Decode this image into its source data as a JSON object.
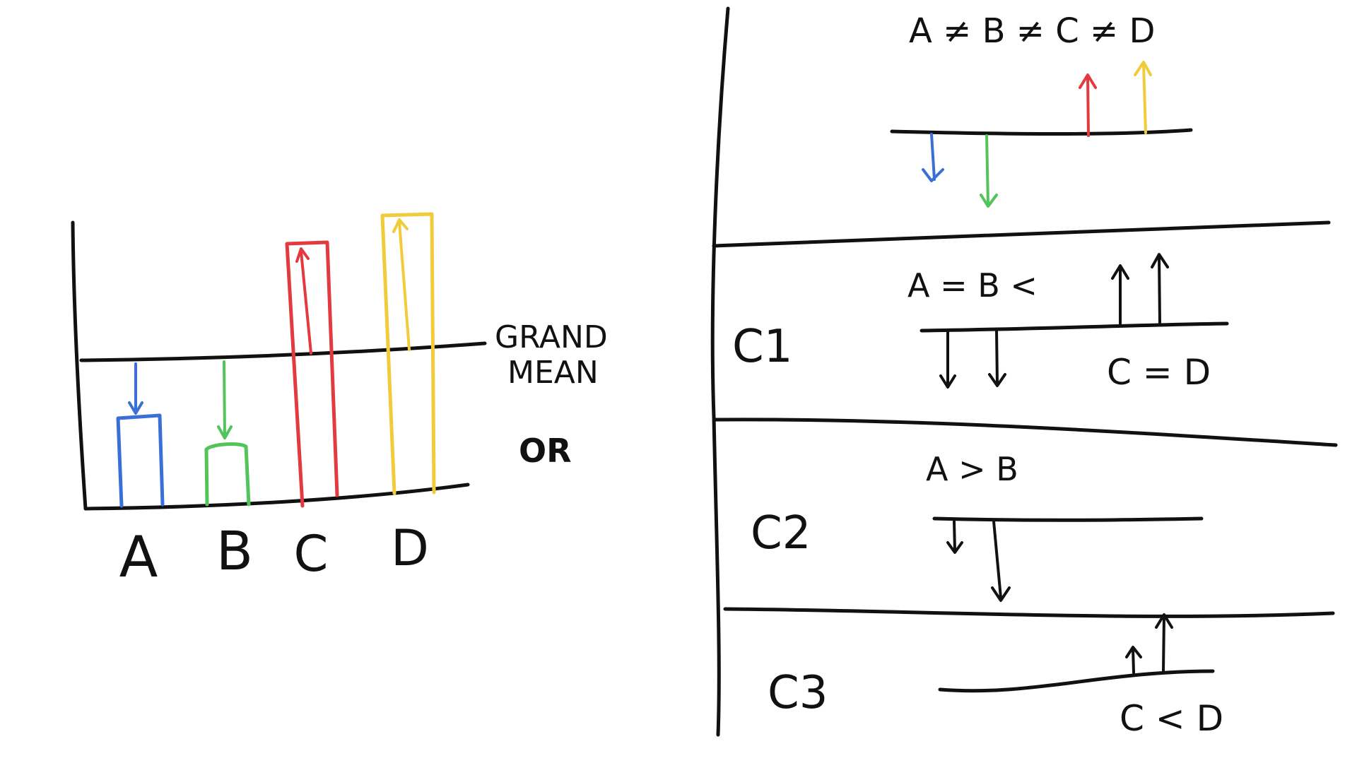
{
  "colors": {
    "ink": "#111111",
    "A": "#3b6fd8",
    "B": "#52c45a",
    "C": "#e23a3f",
    "D": "#f0cc3a",
    "background": "#ffffff"
  },
  "left_panel": {
    "grand_mean_label_line1": "GRAND",
    "grand_mean_label_line2": "MEAN",
    "or_label": "OR",
    "group_labels": [
      "A",
      "B",
      "C",
      "D"
    ],
    "bars": [
      {
        "group": "A",
        "level": "below",
        "color_key": "A"
      },
      {
        "group": "B",
        "level": "below",
        "color_key": "B"
      },
      {
        "group": "C",
        "level": "above",
        "color_key": "C"
      },
      {
        "group": "D",
        "level": "above",
        "color_key": "D"
      }
    ]
  },
  "right_panel": {
    "top": {
      "label": "A ≠ B ≠ C ≠ D",
      "arrows": [
        {
          "group": "A",
          "direction": "down",
          "color_key": "A"
        },
        {
          "group": "B",
          "direction": "down",
          "color_key": "B"
        },
        {
          "group": "C",
          "direction": "up",
          "color_key": "C"
        },
        {
          "group": "D",
          "direction": "up",
          "color_key": "D"
        }
      ]
    },
    "contrasts": [
      {
        "id": "c1",
        "label": "C1",
        "note_top": "A = B  <",
        "note_bottom": "C = D"
      },
      {
        "id": "c2",
        "label": "C2",
        "note_top": "A > B",
        "note_bottom": ""
      },
      {
        "id": "c3",
        "label": "C3",
        "note_top": "",
        "note_bottom": "C < D"
      }
    ]
  }
}
